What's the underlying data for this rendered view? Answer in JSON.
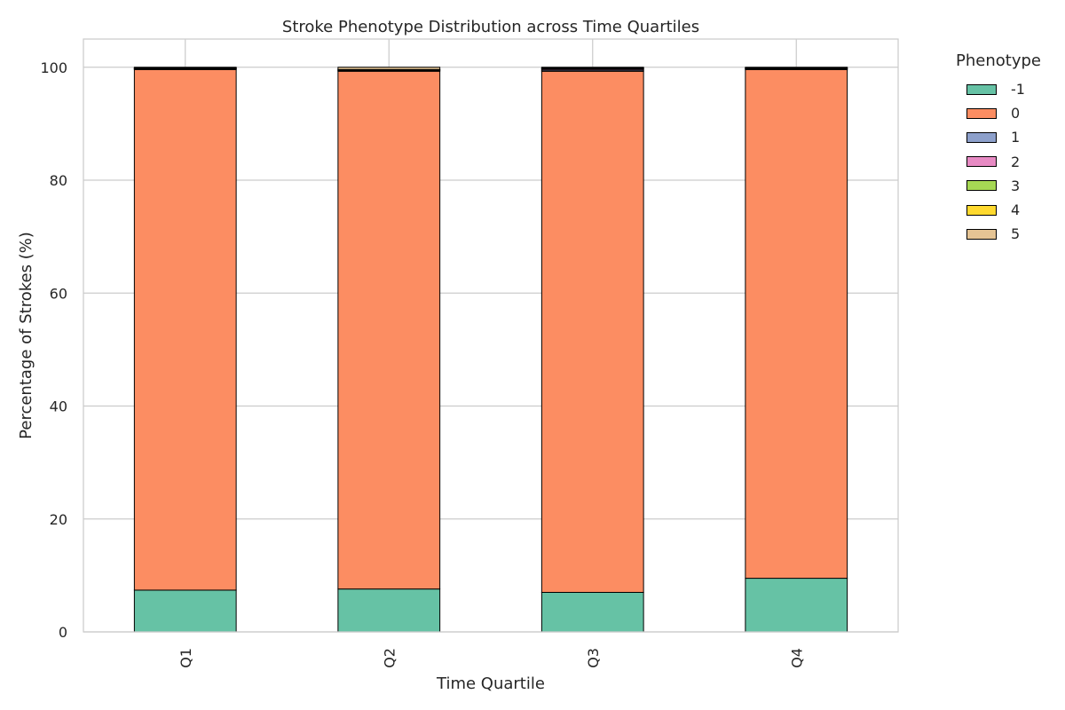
{
  "chart_data": {
    "type": "bar",
    "stacked": true,
    "title": "Stroke Phenotype Distribution across Time Quartiles",
    "xlabel": "Time Quartile",
    "ylabel": "Percentage of Strokes (%)",
    "categories": [
      "Q1",
      "Q2",
      "Q3",
      "Q4"
    ],
    "ylim": [
      0,
      105
    ],
    "yticks": [
      0,
      20,
      40,
      60,
      80,
      100
    ],
    "grid": true,
    "legend": {
      "title": "Phenotype",
      "placement": "outside-top-right"
    },
    "series": [
      {
        "name": "-1",
        "color": "#66c2a5",
        "values": [
          7.4,
          7.6,
          7.0,
          9.5
        ]
      },
      {
        "name": "0",
        "color": "#fc8d62",
        "values": [
          92.2,
          91.7,
          92.3,
          90.1
        ]
      },
      {
        "name": "1",
        "color": "#8da0cb",
        "values": [
          0.1,
          0.1,
          0.2,
          0.1
        ]
      },
      {
        "name": "2",
        "color": "#e78ac3",
        "values": [
          0.1,
          0.1,
          0.2,
          0.1
        ]
      },
      {
        "name": "3",
        "color": "#a6d854",
        "values": [
          0.05,
          0.05,
          0.1,
          0.05
        ]
      },
      {
        "name": "4",
        "color": "#ffd92f",
        "values": [
          0.05,
          0.05,
          0.1,
          0.05
        ]
      },
      {
        "name": "5",
        "color": "#e5c494",
        "values": [
          0.1,
          0.4,
          0.1,
          0.1
        ]
      }
    ]
  }
}
